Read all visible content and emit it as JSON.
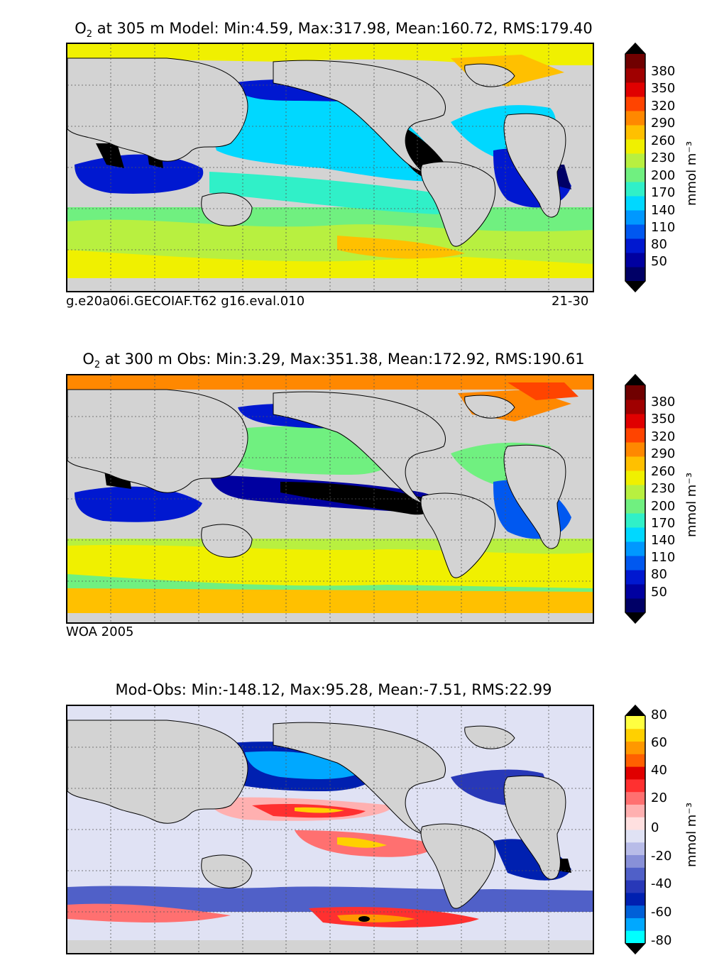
{
  "panels": [
    {
      "title_prefix": "O",
      "title_sub": "2",
      "title_rest": " at 305 m Model: Min:4.59, Max:317.98, Mean:160.72, RMS:179.40",
      "caption_left": "g.e20a06i.GECOIAF.T62 g16.eval.010",
      "caption_right": "21-30"
    },
    {
      "title_prefix": "O",
      "title_sub": "2",
      "title_rest": " at 300 m Obs: Min:3.29, Max:351.38, Mean:172.92, RMS:190.61",
      "caption_left": "WOA 2005",
      "caption_right": ""
    },
    {
      "title_prefix": "",
      "title_sub": "",
      "title_rest": "Mod-Obs: Min:-148.12, Max:95.28, Mean:-7.51, RMS:22.99",
      "caption_left": "",
      "caption_right": ""
    }
  ],
  "colorbars": [
    {
      "label": "mmol m⁻³",
      "ticks": [
        "380",
        "350",
        "320",
        "290",
        "260",
        "230",
        "200",
        "170",
        "140",
        "110",
        "80",
        "50"
      ],
      "colors": [
        "#000066",
        "#0000a0",
        "#0018d0",
        "#0058f0",
        "#0098ff",
        "#00d8ff",
        "#30f0c8",
        "#70f080",
        "#b8f040",
        "#f0f000",
        "#ffc000",
        "#ff8800",
        "#ff4400",
        "#e00000",
        "#a00000",
        "#700000"
      ]
    },
    {
      "label": "mmol m⁻³",
      "ticks": [
        "380",
        "350",
        "320",
        "290",
        "260",
        "230",
        "200",
        "170",
        "140",
        "110",
        "80",
        "50"
      ],
      "colors": [
        "#000066",
        "#0000a0",
        "#0018d0",
        "#0058f0",
        "#0098ff",
        "#00d8ff",
        "#30f0c8",
        "#70f080",
        "#b8f040",
        "#f0f000",
        "#ffc000",
        "#ff8800",
        "#ff4400",
        "#e00000",
        "#a00000",
        "#700000"
      ]
    },
    {
      "label": "mmol m⁻³",
      "ticks": [
        "80",
        "60",
        "40",
        "20",
        "0",
        "-20",
        "-40",
        "-60",
        "-80"
      ],
      "colors": [
        "#00ffff",
        "#00a8ff",
        "#0060d8",
        "#0020b0",
        "#2838b8",
        "#5060c8",
        "#8890d8",
        "#b8bce8",
        "#e0e2f4",
        "#ffe0e0",
        "#ffb0b0",
        "#ff7070",
        "#ff3030",
        "#e00000",
        "#ff6000",
        "#ff9800",
        "#ffd000",
        "#ffff40"
      ]
    }
  ]
}
